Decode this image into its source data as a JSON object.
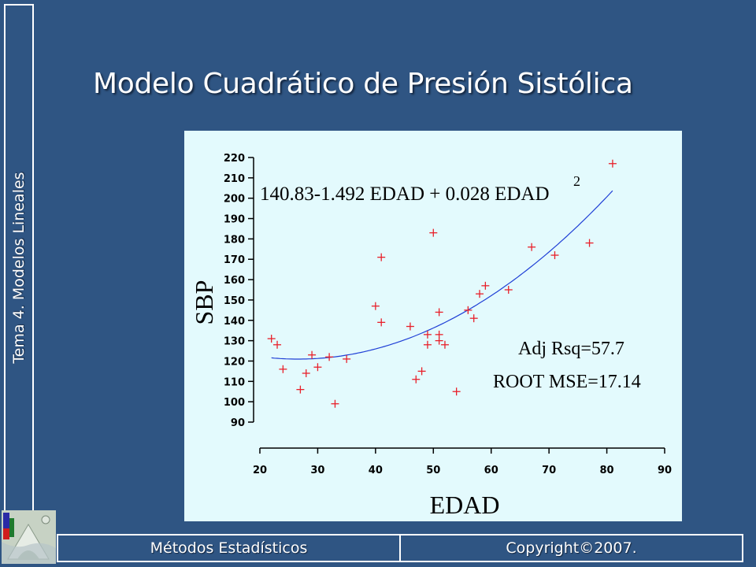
{
  "slide": {
    "title": "Modelo Cuadrático de Presión Sistólica",
    "side_label": "Tema 4. Modelos Lineales",
    "footer_left": "Métodos Estadísticos",
    "footer_right": "Copyright©2007."
  },
  "colors": {
    "background": "#2f5583",
    "chart_background": "#e3fafd",
    "points": "#e8202a",
    "fit_curve": "#1f3fd6"
  },
  "chart_data": {
    "type": "scatter",
    "xlabel": "EDAD",
    "ylabel": "SBP",
    "xlim": [
      20,
      90
    ],
    "ylim": [
      90,
      220
    ],
    "x_ticks": [
      20,
      30,
      40,
      50,
      60,
      70,
      80,
      90
    ],
    "y_ticks": [
      90,
      100,
      110,
      120,
      130,
      140,
      150,
      160,
      170,
      180,
      190,
      200,
      210,
      220
    ],
    "grid": false,
    "equation": "140.83-1.492 EDAD + 0.028 EDAD",
    "equation_superscript": "2",
    "annotations": [
      "Adj Rsq=57.7",
      "ROOT MSE=17.14"
    ],
    "fit": {
      "intercept": 140.83,
      "linear": -1.492,
      "quadratic": 0.028,
      "x_range": [
        22,
        81
      ]
    },
    "points": [
      {
        "x": 22,
        "y": 131
      },
      {
        "x": 23,
        "y": 128
      },
      {
        "x": 24,
        "y": 116
      },
      {
        "x": 27,
        "y": 106
      },
      {
        "x": 28,
        "y": 114
      },
      {
        "x": 29,
        "y": 123
      },
      {
        "x": 30,
        "y": 117
      },
      {
        "x": 32,
        "y": 122
      },
      {
        "x": 33,
        "y": 99
      },
      {
        "x": 35,
        "y": 121
      },
      {
        "x": 40,
        "y": 147
      },
      {
        "x": 41,
        "y": 139
      },
      {
        "x": 41,
        "y": 171
      },
      {
        "x": 46,
        "y": 137
      },
      {
        "x": 47,
        "y": 111
      },
      {
        "x": 48,
        "y": 115
      },
      {
        "x": 49,
        "y": 128
      },
      {
        "x": 49,
        "y": 133
      },
      {
        "x": 50,
        "y": 183
      },
      {
        "x": 51,
        "y": 144
      },
      {
        "x": 51,
        "y": 133
      },
      {
        "x": 51,
        "y": 130
      },
      {
        "x": 52,
        "y": 128
      },
      {
        "x": 54,
        "y": 105
      },
      {
        "x": 56,
        "y": 145
      },
      {
        "x": 57,
        "y": 141
      },
      {
        "x": 58,
        "y": 153
      },
      {
        "x": 59,
        "y": 157
      },
      {
        "x": 63,
        "y": 155
      },
      {
        "x": 67,
        "y": 176
      },
      {
        "x": 71,
        "y": 172
      },
      {
        "x": 77,
        "y": 178
      },
      {
        "x": 81,
        "y": 217
      }
    ]
  }
}
